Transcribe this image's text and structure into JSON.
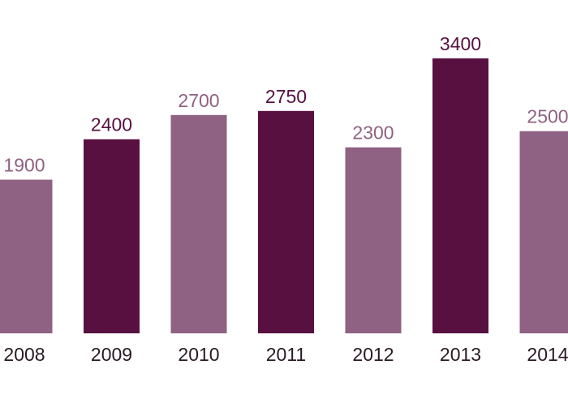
{
  "chart_data": {
    "type": "bar",
    "categories": [
      "2008",
      "2009",
      "2010",
      "2011",
      "2012",
      "2013",
      "2014"
    ],
    "values": [
      1900,
      2400,
      2700,
      2750,
      2300,
      3400,
      2500
    ],
    "colors": [
      "#8f6182",
      "#581040",
      "#8f6182",
      "#581040",
      "#8f6182",
      "#581040",
      "#8f6182"
    ]
  }
}
